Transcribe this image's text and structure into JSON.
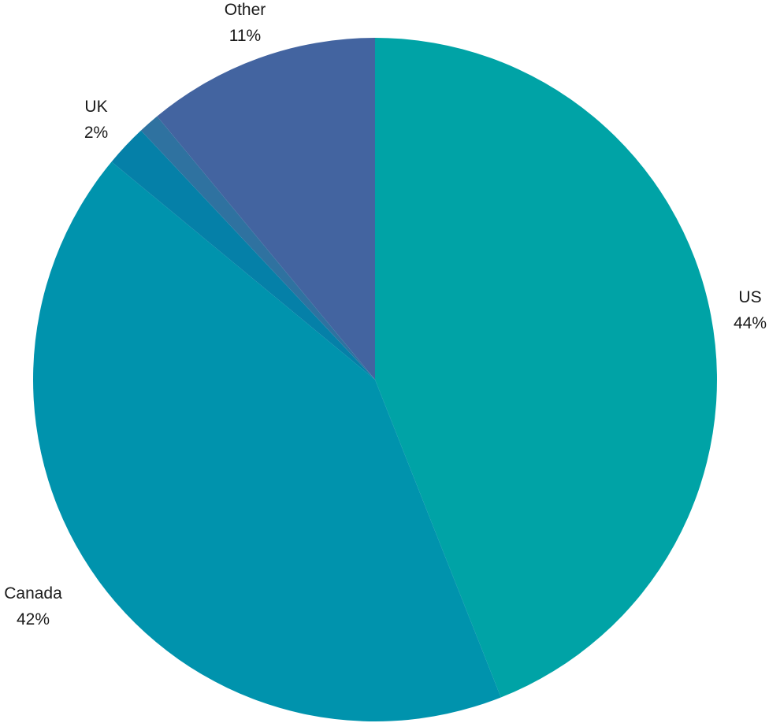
{
  "chart_data": {
    "type": "pie",
    "title": "",
    "slices": [
      {
        "label": "US",
        "percent_label": "44%",
        "value": 44,
        "color": "#00a3a6"
      },
      {
        "label": "Canada",
        "percent_label": "42%",
        "value": 42,
        "color": "#0093ad"
      },
      {
        "label": "UK",
        "percent_label": "2%",
        "value": 2,
        "color": "#0580a8"
      },
      {
        "label": "",
        "percent_label": "",
        "value": 1,
        "color": "#2f72a0"
      },
      {
        "label": "Other",
        "percent_label": "11%",
        "value": 11,
        "color": "#4364a0"
      }
    ],
    "start_angle_deg": 0,
    "direction": "clockwise",
    "legend": "none",
    "labels_outside": true
  }
}
